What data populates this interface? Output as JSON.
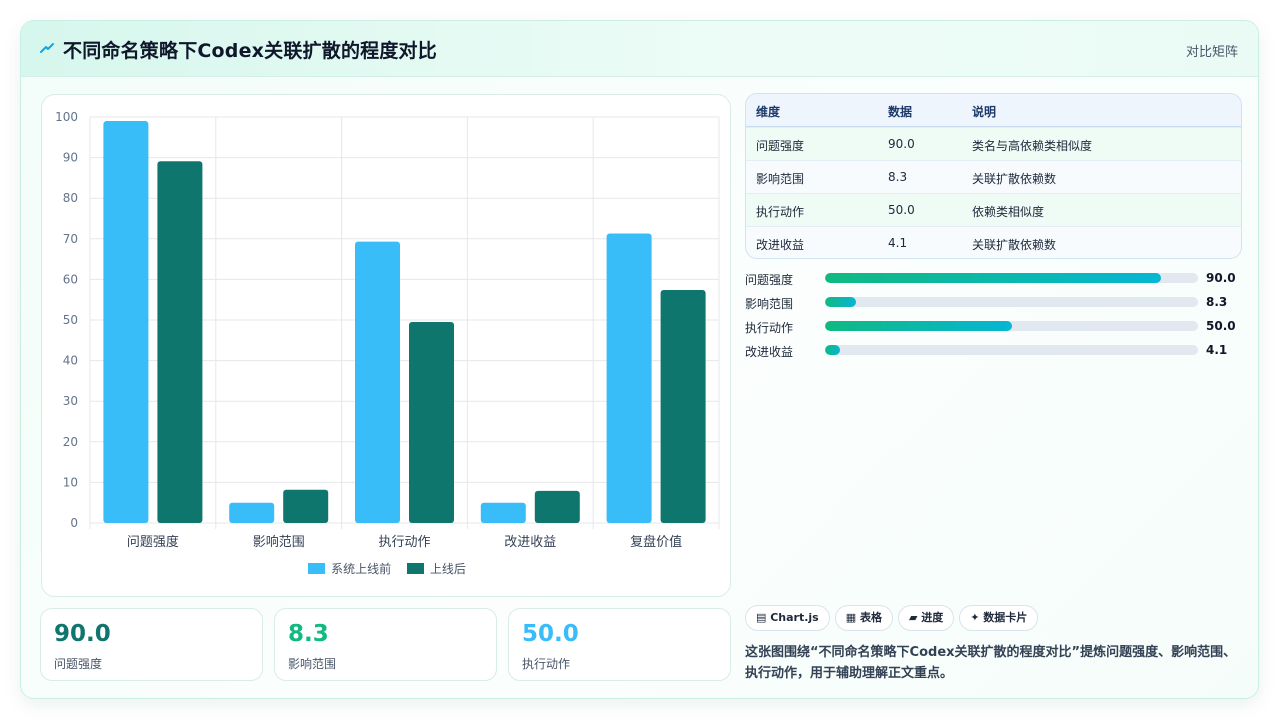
{
  "header": {
    "title": "不同命名策略下Codex关联扩散的程度对比",
    "tag": "对比矩阵"
  },
  "chart_data": {
    "type": "bar",
    "categories": [
      "问题强度",
      "影响范围",
      "执行动作",
      "改进收益",
      "复盘价值"
    ],
    "series": [
      {
        "name": "系统上线前",
        "values": [
          99,
          5,
          69.3,
          5,
          71.3
        ],
        "color": "#38bdf8"
      },
      {
        "name": "上线后",
        "values": [
          89.1,
          8.2,
          49.5,
          7.9,
          57.4
        ],
        "color": "#0f766e"
      }
    ],
    "ylim": [
      0,
      100
    ],
    "yticks": [
      0,
      10,
      20,
      30,
      40,
      50,
      60,
      70,
      80,
      90,
      100
    ],
    "grid": true,
    "legend": "bottom"
  },
  "stats": [
    {
      "value": "90.0",
      "label": "问题强度",
      "color": "#0f766e"
    },
    {
      "value": "8.3",
      "label": "影响范围",
      "color": "#10b981"
    },
    {
      "value": "50.0",
      "label": "执行动作",
      "color": "#38bdf8"
    }
  ],
  "table": {
    "headers": [
      "维度",
      "数据",
      "说明"
    ],
    "rows": [
      [
        "问题强度",
        "90.0",
        "类名与高依赖类相似度"
      ],
      [
        "影响范围",
        "8.3",
        "关联扩散依赖数"
      ],
      [
        "执行动作",
        "50.0",
        "依赖类相似度"
      ],
      [
        "改进收益",
        "4.1",
        "关联扩散依赖数"
      ]
    ]
  },
  "progress": [
    {
      "label": "问题强度",
      "value": "90.0",
      "percent": 90.0
    },
    {
      "label": "影响范围",
      "value": "8.3",
      "percent": 8.3
    },
    {
      "label": "执行动作",
      "value": "50.0",
      "percent": 50.0
    },
    {
      "label": "改进收益",
      "value": "4.1",
      "percent": 4.1
    }
  ],
  "chips": [
    "▤ Chart.js",
    "▦ 表格",
    "▰ 进度",
    "✦ 数据卡片"
  ],
  "note": "这张图围绕“不同命名策略下Codex关联扩散的程度对比”提炼问题强度、影响范围、执行动作，用于辅助理解正文重点。",
  "colors": {
    "accent": "#10b981",
    "teal": "#0f766e",
    "sky": "#38bdf8"
  }
}
